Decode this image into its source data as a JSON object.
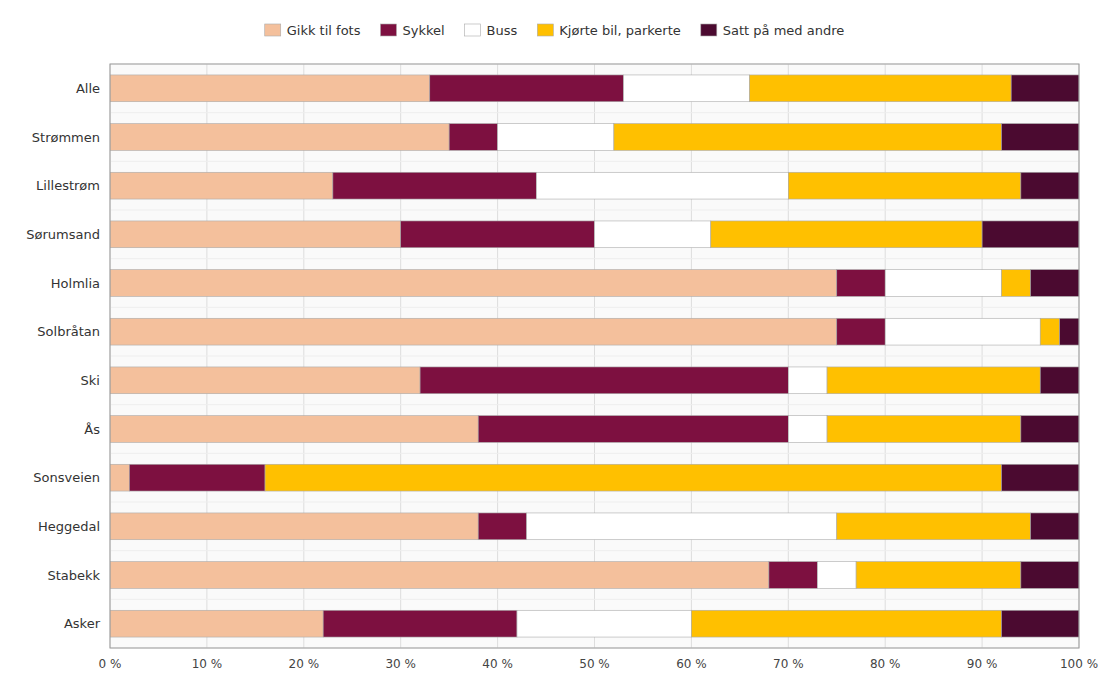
{
  "chart_data": {
    "type": "bar",
    "orientation": "horizontal",
    "stacked": true,
    "grid": true,
    "legend": "top",
    "categories": [
      "Alle",
      "Strømmen",
      "Lillestrøm",
      "Sørumsand",
      "Holmlia",
      "Solbråtan",
      "Ski",
      "Ås",
      "Sonsveien",
      "Heggedal",
      "Stabekk",
      "Asker"
    ],
    "series": [
      {
        "name": "Gikk til fots",
        "color": "#F4C09C",
        "values": [
          33,
          35,
          23,
          30,
          75,
          75,
          32,
          38,
          2,
          38,
          68,
          22
        ]
      },
      {
        "name": "Sykkel",
        "color": "#7D1040",
        "values": [
          20,
          5,
          21,
          20,
          5,
          5,
          38,
          32,
          14,
          5,
          5,
          20
        ]
      },
      {
        "name": "Buss",
        "color": "#FFFFFF",
        "values": [
          13,
          12,
          26,
          12,
          12,
          16,
          4,
          4,
          0,
          32,
          4,
          18
        ]
      },
      {
        "name": "Kjørte bil, parkerte",
        "color": "#FFC000",
        "values": [
          27,
          40,
          24,
          28,
          3,
          2,
          22,
          20,
          76,
          20,
          17,
          32
        ]
      },
      {
        "name": "Satt på med andre",
        "color": "#4B0A30",
        "values": [
          7,
          8,
          6,
          10,
          5,
          2,
          4,
          6,
          8,
          5,
          6,
          8
        ]
      }
    ],
    "xlim": [
      0,
      100
    ],
    "xticks": [
      {
        "value": 0,
        "label": "0 %"
      },
      {
        "value": 10,
        "label": "10 %"
      },
      {
        "value": 20,
        "label": "20 %"
      },
      {
        "value": 30,
        "label": "30 %"
      },
      {
        "value": 40,
        "label": "40 %"
      },
      {
        "value": 50,
        "label": "50 %"
      },
      {
        "value": 60,
        "label": "60 %"
      },
      {
        "value": 70,
        "label": "70 %"
      },
      {
        "value": 80,
        "label": "80 %"
      },
      {
        "value": 90,
        "label": "90 %"
      },
      {
        "value": 100,
        "label": "100 %"
      }
    ]
  }
}
